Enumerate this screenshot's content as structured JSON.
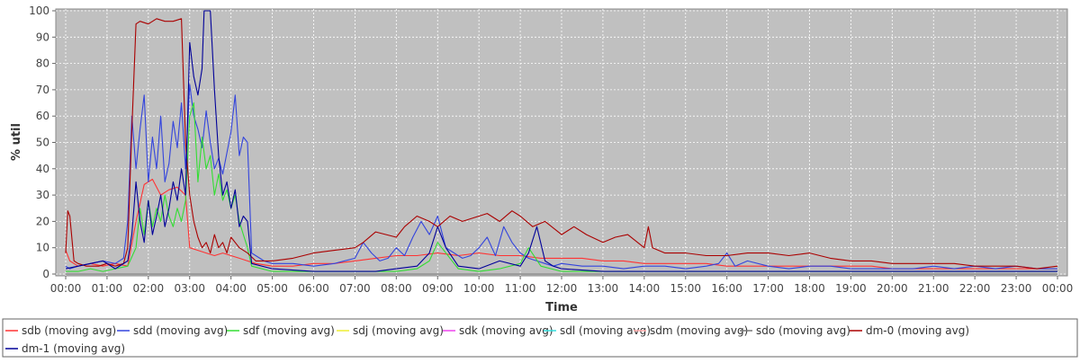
{
  "chart_data": {
    "type": "line",
    "title": "",
    "xlabel": "Time",
    "ylabel": "% util",
    "ylim": [
      0,
      100
    ],
    "yticks": [
      0,
      10,
      20,
      30,
      40,
      50,
      60,
      70,
      80,
      90,
      100
    ],
    "xlim": [
      0,
      24
    ],
    "xticks": [
      "00:00",
      "01:00",
      "02:00",
      "03:00",
      "04:00",
      "05:00",
      "06:00",
      "07:00",
      "08:00",
      "09:00",
      "10:00",
      "11:00",
      "12:00",
      "13:00",
      "14:00",
      "15:00",
      "16:00",
      "17:00",
      "18:00",
      "19:00",
      "20:00",
      "21:00",
      "22:00",
      "23:00",
      "00:00"
    ],
    "grid": true,
    "legend_position": "bottom",
    "x_unit": "hours since 00:00",
    "series": [
      {
        "name": "sdb (moving avg)",
        "color": "#ff3333",
        "x": [
          0.0,
          0.1,
          0.3,
          0.6,
          0.9,
          1.2,
          1.5,
          1.7,
          1.9,
          2.1,
          2.3,
          2.5,
          2.7,
          2.9,
          3.0,
          3.2,
          3.4,
          3.6,
          3.8,
          4.0,
          4.2,
          4.4,
          4.6,
          5.0,
          5.5,
          6.0,
          6.5,
          7.0,
          7.5,
          8.0,
          8.5,
          9.0,
          9.5,
          10.0,
          10.5,
          11.0,
          11.5,
          12.0,
          12.5,
          13.0,
          13.5,
          14.0,
          14.5,
          15.0,
          15.5,
          16.0,
          16.5,
          17.0,
          17.5,
          18.0,
          18.5,
          19.0,
          19.5,
          20.0,
          20.5,
          21.0,
          21.5,
          22.0,
          22.5,
          23.0,
          23.5,
          24.0
        ],
        "y": [
          9,
          5,
          3,
          4,
          3,
          4,
          3,
          20,
          34,
          36,
          30,
          32,
          33,
          30,
          10,
          9,
          8,
          7,
          8,
          7,
          6,
          5,
          4,
          3,
          3,
          4,
          4,
          5,
          6,
          7,
          7,
          8,
          7,
          8,
          7,
          7,
          6,
          6,
          6,
          5,
          5,
          4,
          4,
          4,
          4,
          3,
          3,
          3,
          3,
          3,
          3,
          3,
          3,
          2,
          2,
          2,
          2,
          2,
          2,
          2,
          2,
          2
        ]
      },
      {
        "name": "sdd (moving avg)",
        "color": "#3344dd",
        "x": [
          0.0,
          0.1,
          0.3,
          0.6,
          0.9,
          1.2,
          1.4,
          1.5,
          1.6,
          1.7,
          1.8,
          1.9,
          2.0,
          2.1,
          2.2,
          2.3,
          2.4,
          2.5,
          2.6,
          2.7,
          2.8,
          2.9,
          3.0,
          3.1,
          3.2,
          3.3,
          3.4,
          3.5,
          3.6,
          3.7,
          3.8,
          3.9,
          4.0,
          4.1,
          4.2,
          4.3,
          4.4,
          4.5,
          4.8,
          5.0,
          5.5,
          6.0,
          6.5,
          7.0,
          7.2,
          7.4,
          7.6,
          7.8,
          8.0,
          8.2,
          8.4,
          8.6,
          8.8,
          9.0,
          9.2,
          9.4,
          9.6,
          9.8,
          10.0,
          10.2,
          10.4,
          10.6,
          10.8,
          11.0,
          11.2,
          11.4,
          11.6,
          11.8,
          12.0,
          12.5,
          13.0,
          13.5,
          14.0,
          14.5,
          15.0,
          15.5,
          15.8,
          16.0,
          16.2,
          16.5,
          17.0,
          17.5,
          18.0,
          18.5,
          19.0,
          19.5,
          20.0,
          20.5,
          21.0,
          21.5,
          22.0,
          22.5,
          23.0,
          23.5,
          24.0
        ],
        "y": [
          3,
          2,
          3,
          4,
          5,
          4,
          6,
          20,
          60,
          40,
          55,
          68,
          35,
          52,
          40,
          60,
          35,
          42,
          58,
          48,
          65,
          40,
          72,
          60,
          55,
          48,
          62,
          50,
          40,
          44,
          38,
          46,
          54,
          68,
          45,
          52,
          50,
          8,
          5,
          4,
          4,
          3,
          4,
          6,
          12,
          8,
          5,
          6,
          10,
          7,
          14,
          20,
          15,
          22,
          10,
          8,
          6,
          7,
          10,
          14,
          7,
          18,
          12,
          8,
          6,
          5,
          4,
          3,
          4,
          3,
          3,
          2,
          3,
          3,
          2,
          3,
          4,
          8,
          3,
          5,
          3,
          2,
          3,
          3,
          2,
          2,
          2,
          2,
          3,
          2,
          3,
          2,
          3,
          2,
          2
        ]
      },
      {
        "name": "sdf (moving avg)",
        "color": "#33dd33",
        "x": [
          0.0,
          0.3,
          0.6,
          0.9,
          1.2,
          1.5,
          1.7,
          1.8,
          1.9,
          2.0,
          2.1,
          2.2,
          2.3,
          2.4,
          2.5,
          2.6,
          2.7,
          2.8,
          2.9,
          3.0,
          3.1,
          3.2,
          3.3,
          3.4,
          3.5,
          3.6,
          3.7,
          3.8,
          3.9,
          4.0,
          4.1,
          4.2,
          4.3,
          4.4,
          4.5,
          5.0,
          6.0,
          7.0,
          8.0,
          8.5,
          8.8,
          9.0,
          9.2,
          9.5,
          10.0,
          10.5,
          11.0,
          11.2,
          11.5,
          12.0,
          13.0,
          14.0,
          15.0,
          16.0,
          17.0,
          18.0,
          19.0,
          20.0,
          21.0,
          22.0,
          23.0,
          24.0
        ],
        "y": [
          1,
          1,
          2,
          1,
          2,
          3,
          10,
          25,
          15,
          28,
          18,
          25,
          20,
          30,
          22,
          18,
          25,
          20,
          28,
          60,
          65,
          35,
          52,
          40,
          45,
          30,
          38,
          28,
          32,
          25,
          30,
          20,
          15,
          10,
          3,
          1,
          1,
          1,
          1,
          2,
          5,
          12,
          8,
          2,
          1,
          2,
          4,
          10,
          3,
          1,
          1,
          1,
          1,
          1,
          1,
          1,
          1,
          1,
          1,
          1,
          1,
          1
        ]
      },
      {
        "name": "sdj (moving avg)",
        "color": "#eeee33",
        "x": [
          0,
          24
        ],
        "y": [
          0,
          0
        ]
      },
      {
        "name": "sdk (moving avg)",
        "color": "#ee44ee",
        "x": [
          0,
          24
        ],
        "y": [
          0,
          0
        ]
      },
      {
        "name": "sdl (moving avg)",
        "color": "#33dddd",
        "x": [
          0,
          24
        ],
        "y": [
          0,
          0
        ]
      },
      {
        "name": "sdm (moving avg)",
        "color": "#ffaaaa",
        "x": [
          0,
          24
        ],
        "y": [
          0,
          0
        ]
      },
      {
        "name": "sdo (moving avg)",
        "color": "#777777",
        "x": [
          0,
          24
        ],
        "y": [
          0,
          0
        ]
      },
      {
        "name": "dm-0 (moving avg)",
        "color": "#aa0000",
        "x": [
          0.0,
          0.05,
          0.1,
          0.2,
          0.3,
          0.5,
          0.8,
          1.0,
          1.2,
          1.4,
          1.5,
          1.6,
          1.7,
          1.8,
          2.0,
          2.2,
          2.4,
          2.6,
          2.8,
          2.9,
          3.0,
          3.1,
          3.2,
          3.3,
          3.4,
          3.5,
          3.6,
          3.7,
          3.8,
          3.9,
          4.0,
          4.2,
          4.4,
          4.6,
          5.0,
          5.5,
          6.0,
          6.5,
          7.0,
          7.2,
          7.5,
          8.0,
          8.2,
          8.5,
          8.8,
          9.0,
          9.3,
          9.6,
          10.0,
          10.2,
          10.5,
          10.8,
          11.0,
          11.3,
          11.6,
          12.0,
          12.3,
          12.6,
          13.0,
          13.3,
          13.6,
          14.0,
          14.1,
          14.2,
          14.5,
          15.0,
          15.5,
          16.0,
          16.5,
          17.0,
          17.5,
          18.0,
          18.5,
          19.0,
          19.5,
          20.0,
          20.5,
          21.0,
          21.5,
          22.0,
          22.5,
          23.0,
          23.5,
          24.0
        ],
        "y": [
          8,
          24,
          22,
          5,
          4,
          3,
          3,
          4,
          3,
          4,
          10,
          55,
          95,
          96,
          95,
          97,
          96,
          96,
          97,
          50,
          30,
          20,
          14,
          10,
          12,
          8,
          15,
          10,
          12,
          8,
          14,
          10,
          8,
          5,
          5,
          6,
          8,
          9,
          10,
          12,
          16,
          14,
          18,
          22,
          20,
          18,
          22,
          20,
          22,
          23,
          20,
          24,
          22,
          18,
          20,
          15,
          18,
          15,
          12,
          14,
          15,
          10,
          18,
          10,
          8,
          8,
          7,
          7,
          8,
          8,
          7,
          8,
          6,
          5,
          5,
          4,
          4,
          4,
          4,
          3,
          3,
          3,
          2,
          3
        ]
      },
      {
        "name": "dm-1 (moving avg)",
        "color": "#000099",
        "x": [
          0.0,
          0.3,
          0.6,
          0.9,
          1.2,
          1.5,
          1.6,
          1.7,
          1.8,
          1.9,
          2.0,
          2.1,
          2.2,
          2.3,
          2.4,
          2.5,
          2.6,
          2.7,
          2.8,
          2.9,
          3.0,
          3.1,
          3.2,
          3.3,
          3.35,
          3.5,
          3.6,
          3.7,
          3.8,
          3.9,
          4.0,
          4.1,
          4.2,
          4.3,
          4.4,
          4.5,
          5.0,
          6.0,
          7.0,
          7.5,
          8.0,
          8.5,
          8.8,
          9.0,
          9.2,
          9.5,
          10.0,
          10.5,
          11.0,
          11.2,
          11.4,
          11.6,
          11.8,
          12.0,
          13.0,
          14.0,
          15.0,
          16.0,
          17.0,
          18.0,
          19.0,
          20.0,
          21.0,
          22.0,
          23.0,
          24.0
        ],
        "y": [
          2,
          3,
          4,
          5,
          2,
          5,
          15,
          35,
          20,
          12,
          28,
          15,
          22,
          30,
          18,
          25,
          35,
          28,
          40,
          30,
          88,
          75,
          68,
          78,
          100,
          100,
          70,
          45,
          30,
          35,
          25,
          32,
          18,
          22,
          20,
          4,
          2,
          1,
          1,
          1,
          2,
          3,
          8,
          18,
          10,
          3,
          2,
          5,
          3,
          8,
          18,
          5,
          3,
          2,
          1,
          1,
          1,
          1,
          1,
          1,
          1,
          1,
          1,
          1,
          1,
          1
        ]
      }
    ]
  }
}
